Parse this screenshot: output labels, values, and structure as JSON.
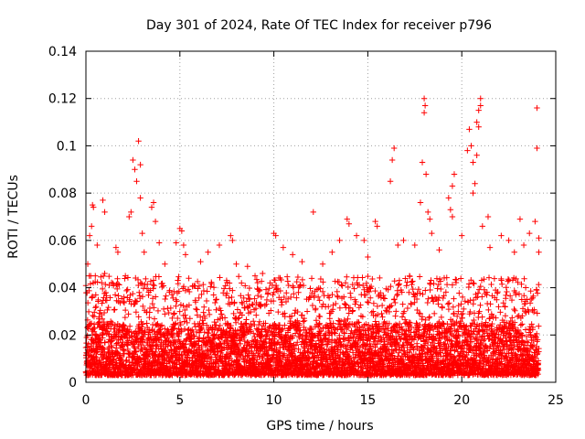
{
  "chart_data": {
    "type": "scatter",
    "title": "Day 301 of 2024, Rate Of TEC Index for receiver p796",
    "xlabel": "GPS time / hours",
    "ylabel": "ROTI / TECUs",
    "xlim": [
      0,
      25
    ],
    "ylim": [
      0,
      0.14
    ],
    "x_ticks": [
      "0",
      "5",
      "10",
      "15",
      "20",
      "25"
    ],
    "y_ticks": [
      "0",
      "0.02",
      "0.04",
      "0.06",
      "0.08",
      "0.1",
      "0.12",
      "0.14"
    ],
    "grid": true,
    "marker": "+",
    "color": "#ff0000",
    "series": [
      {
        "name": "ROTI",
        "points": [
          [
            0.1,
            0.05
          ],
          [
            0.2,
            0.062
          ],
          [
            0.3,
            0.066
          ],
          [
            0.35,
            0.075
          ],
          [
            0.4,
            0.074
          ],
          [
            0.5,
            0.045
          ],
          [
            0.6,
            0.058
          ],
          [
            0.9,
            0.077
          ],
          [
            1.0,
            0.072
          ],
          [
            1.0,
            0.046
          ],
          [
            1.6,
            0.057
          ],
          [
            1.7,
            0.055
          ],
          [
            2.1,
            0.045
          ],
          [
            2.3,
            0.07
          ],
          [
            2.4,
            0.072
          ],
          [
            2.5,
            0.094
          ],
          [
            2.6,
            0.09
          ],
          [
            2.7,
            0.085
          ],
          [
            2.8,
            0.102
          ],
          [
            2.9,
            0.092
          ],
          [
            2.9,
            0.078
          ],
          [
            3.0,
            0.063
          ],
          [
            3.1,
            0.055
          ],
          [
            3.5,
            0.074
          ],
          [
            3.6,
            0.076
          ],
          [
            3.7,
            0.068
          ],
          [
            3.9,
            0.059
          ],
          [
            4.2,
            0.05
          ],
          [
            4.8,
            0.059
          ],
          [
            5.0,
            0.065
          ],
          [
            5.1,
            0.064
          ],
          [
            5.2,
            0.058
          ],
          [
            5.3,
            0.054
          ],
          [
            6.1,
            0.051
          ],
          [
            6.5,
            0.055
          ],
          [
            7.1,
            0.058
          ],
          [
            7.7,
            0.062
          ],
          [
            7.8,
            0.06
          ],
          [
            8.0,
            0.05
          ],
          [
            8.6,
            0.049
          ],
          [
            9.0,
            0.045
          ],
          [
            9.4,
            0.046
          ],
          [
            10.0,
            0.063
          ],
          [
            10.1,
            0.062
          ],
          [
            10.5,
            0.057
          ],
          [
            11.0,
            0.054
          ],
          [
            11.5,
            0.051
          ],
          [
            12.1,
            0.072
          ],
          [
            12.6,
            0.05
          ],
          [
            13.1,
            0.055
          ],
          [
            13.5,
            0.06
          ],
          [
            13.9,
            0.069
          ],
          [
            14.0,
            0.067
          ],
          [
            14.4,
            0.062
          ],
          [
            14.8,
            0.06
          ],
          [
            15.0,
            0.053
          ],
          [
            15.4,
            0.068
          ],
          [
            15.5,
            0.066
          ],
          [
            16.2,
            0.085
          ],
          [
            16.3,
            0.094
          ],
          [
            16.4,
            0.099
          ],
          [
            16.6,
            0.058
          ],
          [
            16.9,
            0.06
          ],
          [
            17.5,
            0.058
          ],
          [
            17.8,
            0.076
          ],
          [
            17.9,
            0.093
          ],
          [
            18.0,
            0.12
          ],
          [
            18.05,
            0.117
          ],
          [
            18.0,
            0.114
          ],
          [
            18.1,
            0.088
          ],
          [
            18.2,
            0.072
          ],
          [
            18.3,
            0.069
          ],
          [
            18.4,
            0.063
          ],
          [
            18.8,
            0.056
          ],
          [
            19.3,
            0.078
          ],
          [
            19.4,
            0.073
          ],
          [
            19.5,
            0.07
          ],
          [
            19.5,
            0.083
          ],
          [
            19.6,
            0.088
          ],
          [
            20.0,
            0.062
          ],
          [
            20.3,
            0.098
          ],
          [
            20.4,
            0.107
          ],
          [
            20.5,
            0.1
          ],
          [
            20.6,
            0.093
          ],
          [
            20.6,
            0.08
          ],
          [
            20.7,
            0.084
          ],
          [
            20.8,
            0.096
          ],
          [
            20.8,
            0.11
          ],
          [
            20.9,
            0.115
          ],
          [
            21.0,
            0.12
          ],
          [
            21.0,
            0.117
          ],
          [
            20.9,
            0.108
          ],
          [
            21.1,
            0.066
          ],
          [
            21.4,
            0.07
          ],
          [
            21.5,
            0.057
          ],
          [
            22.1,
            0.062
          ],
          [
            22.5,
            0.06
          ],
          [
            22.8,
            0.055
          ],
          [
            23.1,
            0.069
          ],
          [
            23.3,
            0.058
          ],
          [
            23.6,
            0.063
          ],
          [
            23.9,
            0.068
          ],
          [
            24.0,
            0.116
          ],
          [
            24.0,
            0.099
          ],
          [
            24.1,
            0.061
          ],
          [
            24.1,
            0.055
          ]
        ],
        "bulk_envelope": {
          "description": "dense cloud of points sampled continuously from 0 to 24 h",
          "x_range": [
            0,
            24.1
          ],
          "x_step": 0.015,
          "floor": 0.003,
          "typical_upper": 0.025,
          "frequent_upper": 0.045
        }
      }
    ]
  }
}
